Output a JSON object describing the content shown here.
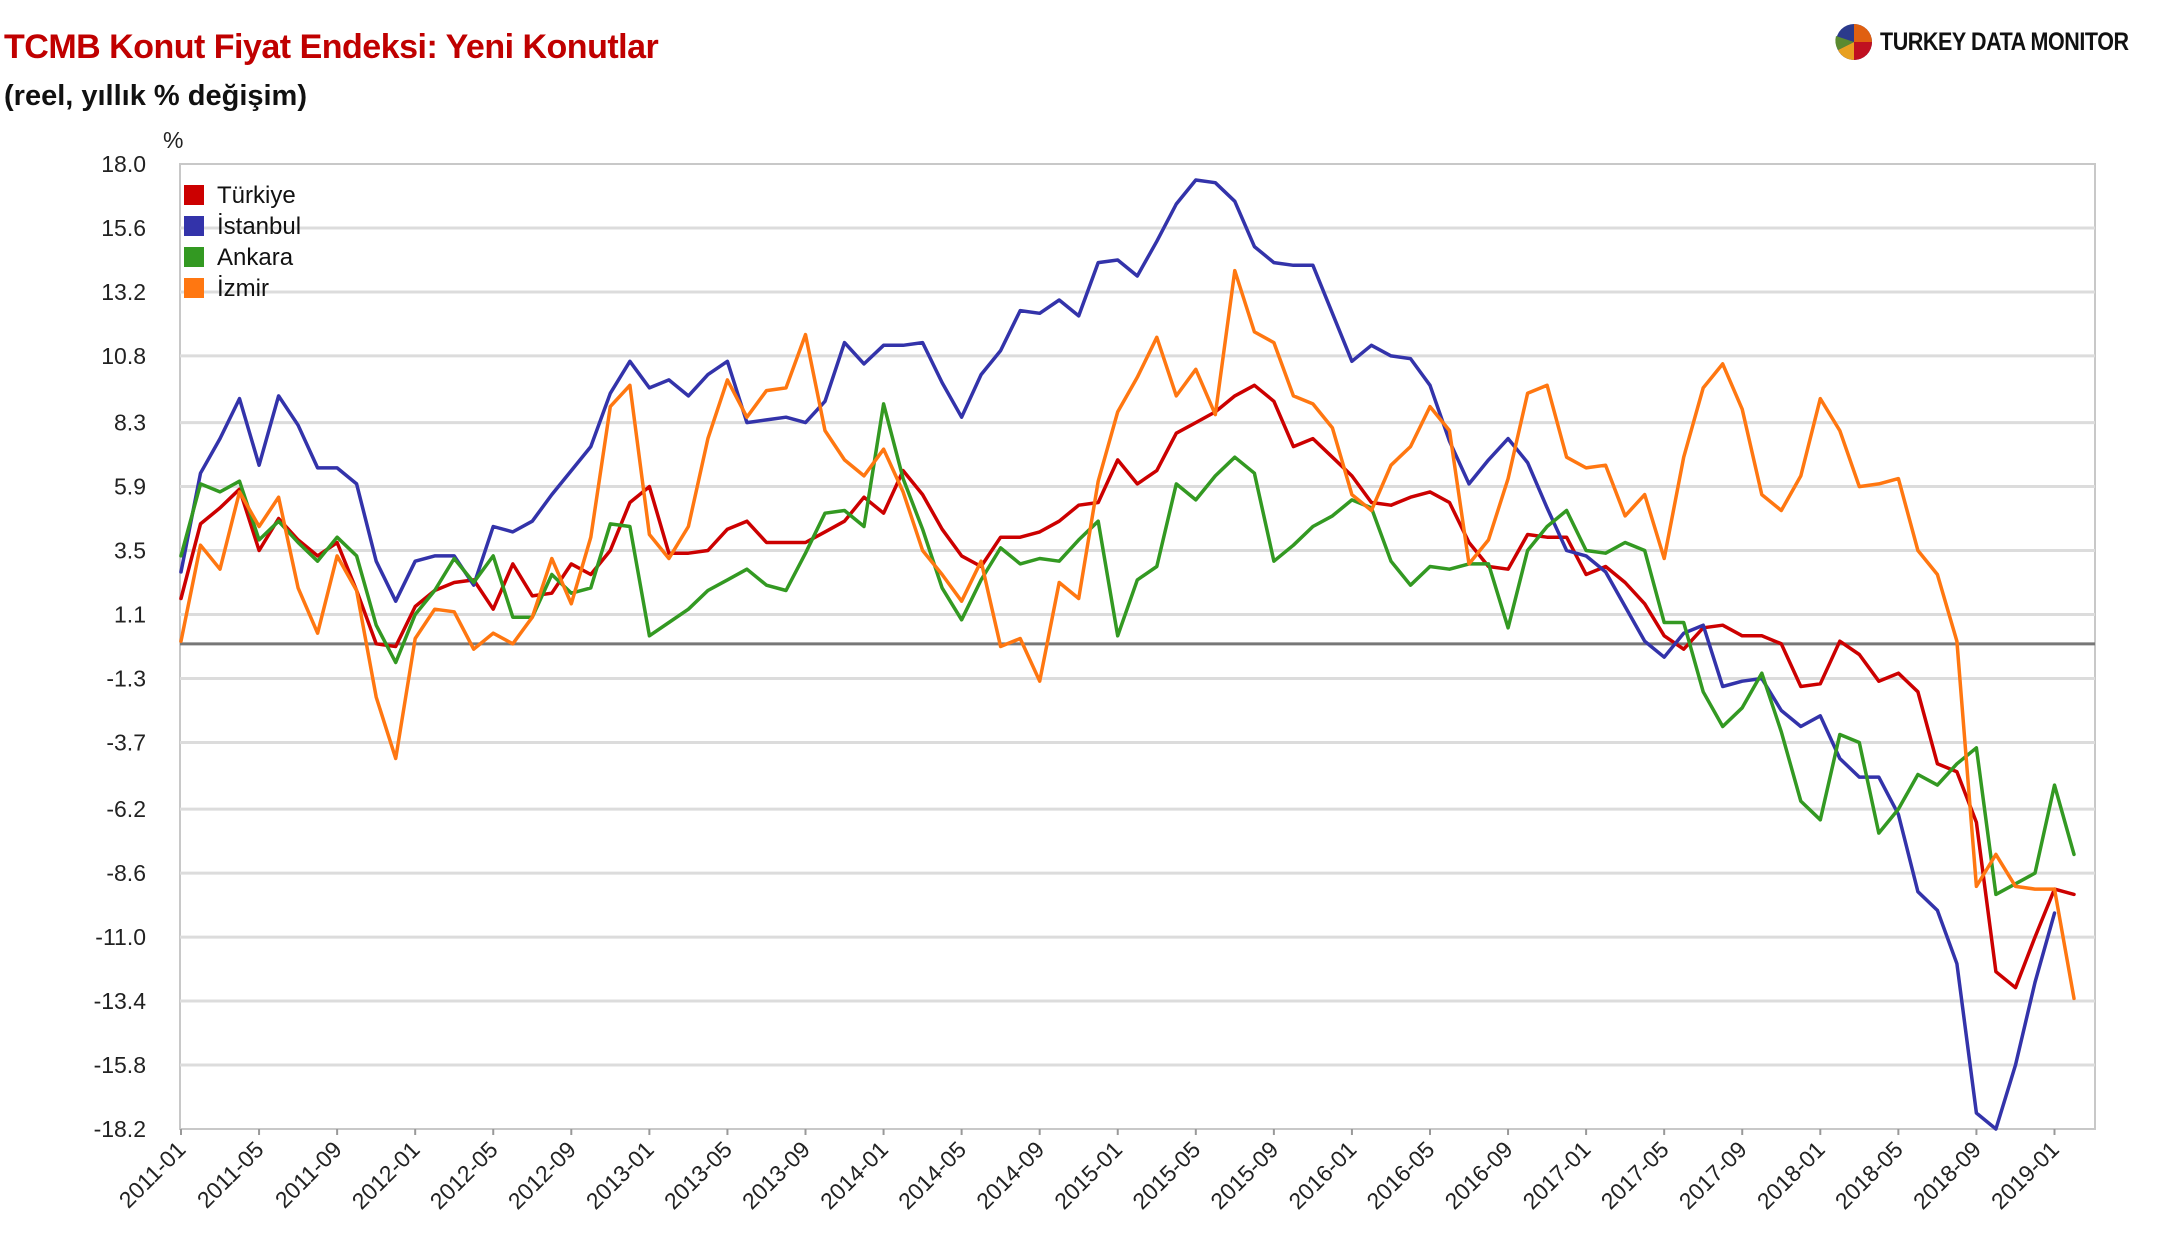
{
  "title": "TCMB Konut Fiyat Endeksi: Yeni Konutlar",
  "subtitle": "(reel, yıllık % değişim)",
  "brand": "TURKEY DATA MONITOR",
  "colors": {
    "title": "#c00000",
    "grid": "#dcdcdc",
    "zero_line": "#777777",
    "frame": "#c8c8c8"
  },
  "chart_data": {
    "type": "line",
    "ylabel": "%",
    "ylim": [
      -18.2,
      18.0
    ],
    "yticks": [
      18.0,
      15.6,
      13.2,
      10.8,
      8.3,
      5.9,
      3.5,
      1.1,
      -1.3,
      -3.7,
      -6.2,
      -8.6,
      -11.0,
      -13.4,
      -15.8,
      -18.2
    ],
    "xticks": [
      "2011-01",
      "2011-05",
      "2011-09",
      "2012-01",
      "2012-05",
      "2012-09",
      "2013-01",
      "2013-05",
      "2013-09",
      "2014-01",
      "2014-05",
      "2014-09",
      "2015-01",
      "2015-05",
      "2015-09",
      "2016-01",
      "2016-05",
      "2016-09",
      "2017-01",
      "2017-05",
      "2017-09",
      "2018-01",
      "2018-05",
      "2018-09",
      "2019-01"
    ],
    "x_start": "2011-01",
    "legend_position": "top-left",
    "grid": true,
    "series": [
      {
        "name": "Türkiye",
        "color": "#cc0000",
        "values": [
          1.7,
          4.5,
          5.1,
          5.8,
          3.5,
          4.7,
          3.9,
          3.3,
          3.8,
          2.0,
          0.0,
          -0.1,
          1.4,
          2.0,
          2.3,
          2.4,
          1.3,
          3.0,
          1.8,
          1.9,
          3.0,
          2.6,
          3.5,
          5.3,
          5.9,
          3.4,
          3.4,
          3.5,
          4.3,
          4.6,
          3.8,
          3.8,
          3.8,
          4.2,
          4.6,
          5.5,
          4.9,
          6.5,
          5.6,
          4.3,
          3.3,
          2.9,
          4.0,
          4.0,
          4.2,
          4.6,
          5.2,
          5.3,
          6.9,
          6.0,
          6.5,
          7.9,
          8.3,
          8.7,
          9.3,
          9.7,
          9.1,
          7.4,
          7.7,
          7.0,
          6.3,
          5.3,
          5.2,
          5.5,
          5.7,
          5.3,
          3.8,
          2.9,
          2.8,
          4.1,
          4.0,
          4.0,
          2.6,
          2.9,
          2.3,
          1.5,
          0.3,
          -0.2,
          0.6,
          0.7,
          0.3,
          0.3,
          0.0,
          -1.6,
          -1.5,
          0.1,
          -0.4,
          -1.4,
          -1.1,
          -1.8,
          -4.5,
          -4.8,
          -6.7,
          -12.3,
          -12.9,
          -11.0,
          -9.2,
          -9.4
        ]
      },
      {
        "name": "İstanbul",
        "color": "#3333aa",
        "values": [
          2.7,
          6.4,
          7.7,
          9.2,
          6.7,
          9.3,
          8.2,
          6.6,
          6.6,
          6.0,
          3.1,
          1.6,
          3.1,
          3.3,
          3.3,
          2.2,
          4.4,
          4.2,
          4.6,
          5.6,
          6.5,
          7.4,
          9.4,
          10.6,
          9.6,
          9.9,
          9.3,
          10.1,
          10.6,
          8.3,
          8.4,
          8.5,
          8.3,
          9.1,
          11.3,
          10.5,
          11.2,
          11.2,
          11.3,
          9.8,
          8.5,
          10.1,
          11.0,
          12.5,
          12.4,
          12.9,
          12.3,
          14.3,
          14.4,
          13.8,
          15.1,
          16.5,
          17.4,
          17.3,
          16.6,
          14.9,
          14.3,
          14.2,
          14.2,
          12.4,
          10.6,
          11.2,
          10.8,
          10.7,
          9.7,
          7.6,
          6.0,
          6.9,
          7.7,
          6.8,
          5.1,
          3.5,
          3.3,
          2.7,
          1.4,
          0.1,
          -0.5,
          0.4,
          0.7,
          -1.6,
          -1.4,
          -1.3,
          -2.5,
          -3.1,
          -2.7,
          -4.3,
          -5.0,
          -5.0,
          -6.4,
          -9.3,
          -10.0,
          -12.0,
          -17.6,
          -18.2,
          -15.8,
          -12.7,
          -10.1
        ]
      },
      {
        "name": "Ankara",
        "color": "#339922",
        "values": [
          3.3,
          6.0,
          5.7,
          6.1,
          3.9,
          4.6,
          3.8,
          3.1,
          4.0,
          3.3,
          0.7,
          -0.7,
          1.1,
          2.0,
          3.2,
          2.3,
          3.3,
          1.0,
          1.0,
          2.6,
          1.9,
          2.1,
          4.5,
          4.4,
          0.3,
          0.8,
          1.3,
          2.0,
          2.4,
          2.8,
          2.2,
          2.0,
          3.4,
          4.9,
          5.0,
          4.4,
          9.0,
          6.2,
          4.3,
          2.1,
          0.9,
          2.4,
          3.6,
          3.0,
          3.2,
          3.1,
          3.9,
          4.6,
          0.3,
          2.4,
          2.9,
          6.0,
          5.4,
          6.3,
          7.0,
          6.4,
          3.1,
          3.7,
          4.4,
          4.8,
          5.4,
          5.1,
          3.1,
          2.2,
          2.9,
          2.8,
          3.0,
          3.0,
          0.6,
          3.5,
          4.4,
          5.0,
          3.5,
          3.4,
          3.8,
          3.5,
          0.8,
          0.8,
          -1.8,
          -3.1,
          -2.4,
          -1.1,
          -3.3,
          -5.9,
          -6.6,
          -3.4,
          -3.7,
          -7.1,
          -6.2,
          -4.9,
          -5.3,
          -4.5,
          -3.9,
          -9.4,
          -9.0,
          -8.6,
          -5.3,
          -7.9
        ]
      },
      {
        "name": "İzmir",
        "color": "#ff7711",
        "values": [
          0.1,
          3.7,
          2.8,
          5.7,
          4.4,
          5.5,
          2.1,
          0.4,
          3.3,
          2.0,
          -2.0,
          -4.3,
          0.2,
          1.3,
          1.2,
          -0.2,
          0.4,
          0.0,
          1.0,
          3.2,
          1.5,
          4.0,
          8.9,
          9.7,
          4.1,
          3.2,
          4.4,
          7.7,
          9.9,
          8.5,
          9.5,
          9.6,
          11.6,
          8.0,
          6.9,
          6.3,
          7.3,
          5.7,
          3.5,
          2.6,
          1.6,
          3.1,
          -0.1,
          0.2,
          -1.4,
          2.3,
          1.7,
          6.1,
          8.7,
          10.0,
          11.5,
          9.3,
          10.3,
          8.6,
          14.0,
          11.7,
          11.3,
          9.3,
          9.0,
          8.1,
          5.6,
          5.0,
          6.7,
          7.4,
          8.9,
          8.0,
          3.0,
          3.9,
          6.2,
          9.4,
          9.7,
          7.0,
          6.6,
          6.7,
          4.8,
          5.6,
          3.2,
          7.0,
          9.6,
          10.5,
          8.8,
          5.6,
          5.0,
          6.3,
          9.2,
          8.0,
          5.9,
          6.0,
          6.2,
          3.5,
          2.6,
          0.1,
          -9.1,
          -7.9,
          -9.1,
          -9.2,
          -9.2,
          -13.3
        ]
      }
    ]
  }
}
